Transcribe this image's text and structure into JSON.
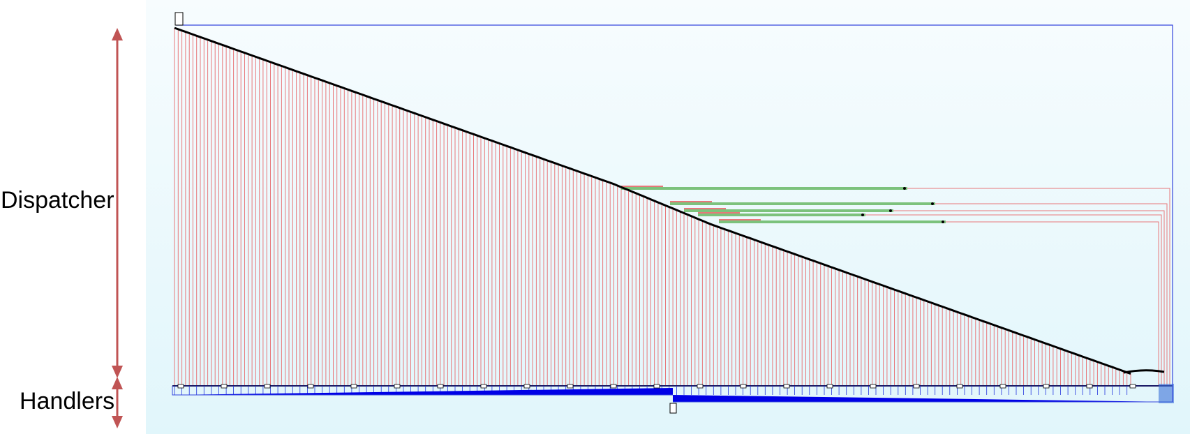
{
  "labels": {
    "dispatcher": "Dispatcher",
    "handlers": "Handlers"
  },
  "colors": {
    "background_top": "#f7fcfe",
    "background_bottom": "#e1f6fb",
    "dispatch_lines": "#e8777a",
    "handler_lines": "#2233dd",
    "handler_bus": "#0000e6",
    "nested_branch": "#7cc27c",
    "node": "#000000",
    "range_arrow": "#c05454",
    "frame": "#3344dd"
  },
  "structure": {
    "dispatch_branch_count": 260,
    "nested_branch_count": 5
  }
}
